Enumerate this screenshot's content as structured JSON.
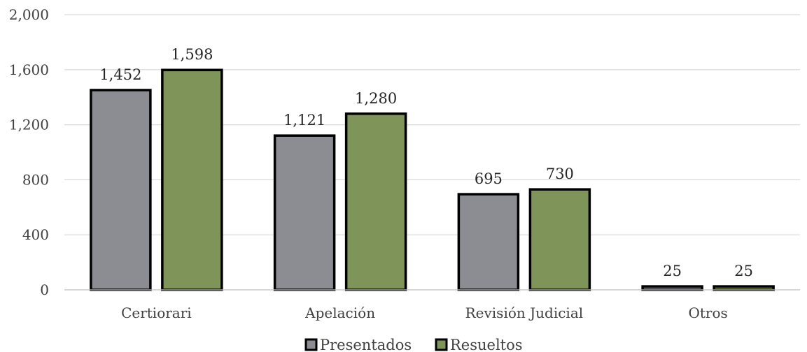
{
  "chart_data": {
    "type": "bar",
    "categories": [
      "Certiorari",
      "Apelación",
      "Revisión Judicial",
      "Otros"
    ],
    "series": [
      {
        "name": "Presentados",
        "values": [
          1452,
          1121,
          695,
          25
        ],
        "color": "#8c8c93"
      },
      {
        "name": "Resueltos",
        "values": [
          1598,
          1280,
          730,
          25
        ],
        "color": "#7f9458"
      }
    ],
    "data_labels": [
      [
        "1,452",
        "1,121",
        "695",
        "25"
      ],
      [
        "1,598",
        "1,280",
        "730",
        "25"
      ]
    ],
    "y_ticks": [
      "0",
      "400",
      "800",
      "1,200",
      "1,600",
      "2,000"
    ],
    "y_tick_values": [
      0,
      400,
      800,
      1200,
      1600,
      2000
    ],
    "ylim": [
      0,
      2000
    ],
    "grid": true,
    "legend_position": "bottom",
    "bar_outline_color": "#000000"
  }
}
